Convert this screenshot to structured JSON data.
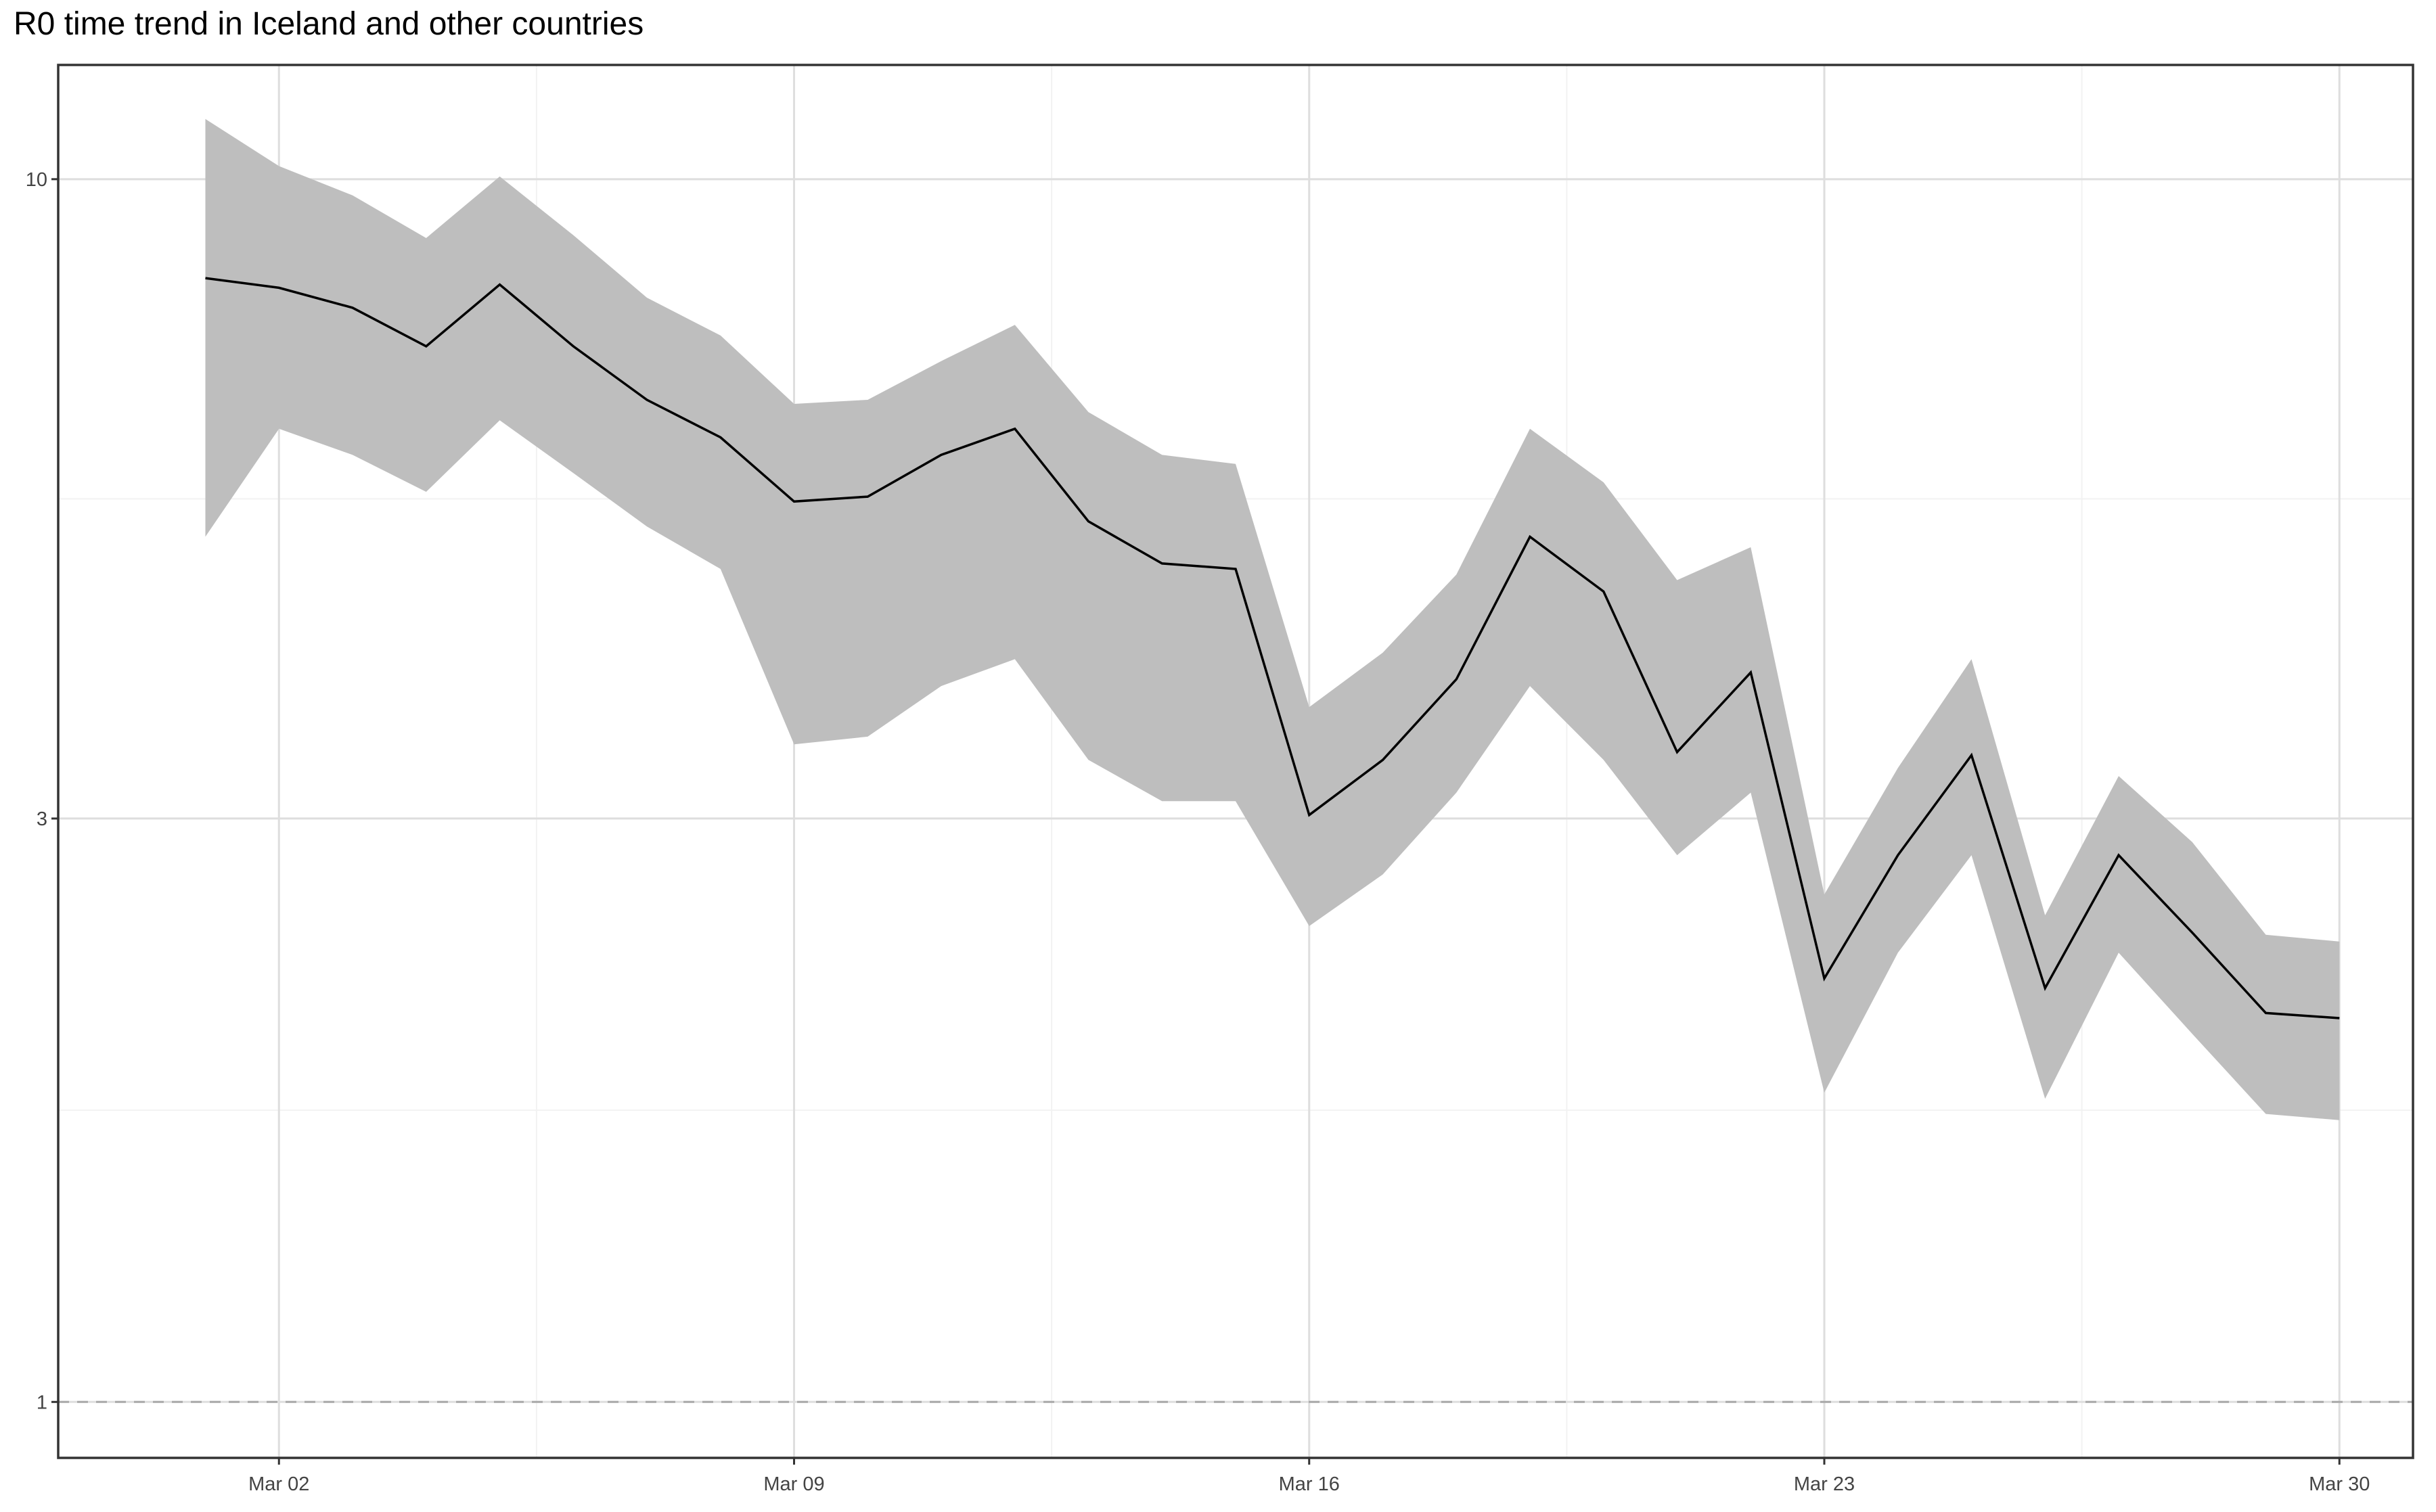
{
  "chart_data": {
    "type": "line",
    "title": "R0 time trend in Iceland and other countries",
    "xlabel": "",
    "ylabel": "",
    "yscale": "log",
    "ylim": [
      0.9,
      12.4
    ],
    "xlim": [
      "2020-02-28",
      "2020-03-31"
    ],
    "x_ticks": [
      "Mar 02",
      "Mar 09",
      "Mar 16",
      "Mar 23",
      "Mar 30"
    ],
    "x_tick_dates": [
      "2020-03-02",
      "2020-03-09",
      "2020-03-16",
      "2020-03-23",
      "2020-03-30"
    ],
    "y_ticks": [
      1,
      3,
      10
    ],
    "y_tick_labels": [
      "1",
      "3",
      "10"
    ],
    "reference_line": {
      "y": 1,
      "style": "dashed"
    },
    "grid": true,
    "legend": "none",
    "series": [
      {
        "x": [
          "2020-03-01",
          "2020-03-02",
          "2020-03-03",
          "2020-03-04",
          "2020-03-05",
          "2020-03-06",
          "2020-03-07",
          "2020-03-08",
          "2020-03-09",
          "2020-03-10",
          "2020-03-11",
          "2020-03-12",
          "2020-03-13",
          "2020-03-14",
          "2020-03-15",
          "2020-03-16",
          "2020-03-17",
          "2020-03-18",
          "2020-03-19",
          "2020-03-20",
          "2020-03-21",
          "2020-03-22",
          "2020-03-23",
          "2020-03-24",
          "2020-03-25",
          "2020-03-26",
          "2020-03-27",
          "2020-03-28",
          "2020-03-29",
          "2020-03-30"
        ],
        "values": [
          8.3,
          8.15,
          7.85,
          7.3,
          8.2,
          7.3,
          6.6,
          6.15,
          5.45,
          5.5,
          5.95,
          6.25,
          5.25,
          4.85,
          4.8,
          3.02,
          3.35,
          3.9,
          5.1,
          4.6,
          3.4,
          3.95,
          2.22,
          2.8,
          3.38,
          2.18,
          2.8,
          2.42,
          2.08,
          2.06
        ],
        "lower": [
          5.1,
          6.25,
          5.95,
          5.55,
          6.35,
          5.75,
          5.2,
          4.8,
          3.45,
          3.5,
          3.85,
          4.05,
          3.35,
          3.1,
          3.1,
          2.45,
          2.7,
          3.15,
          3.85,
          3.35,
          2.8,
          3.15,
          1.79,
          2.33,
          2.8,
          1.77,
          2.33,
          2.0,
          1.72,
          1.7
        ],
        "upper": [
          11.2,
          10.25,
          9.7,
          8.95,
          10.05,
          9.0,
          8.0,
          7.45,
          6.55,
          6.6,
          7.1,
          7.6,
          6.45,
          5.95,
          5.85,
          3.7,
          4.1,
          4.75,
          6.25,
          5.65,
          4.7,
          5.0,
          2.6,
          3.3,
          4.05,
          2.5,
          3.25,
          2.87,
          2.41,
          2.38
        ]
      }
    ],
    "colors": {
      "line": "#000000",
      "ribbon": "#bebebe",
      "reference": "#a9a9a9",
      "grid_major": "#dedede",
      "grid_minor": "#f2f2f2",
      "frame": "#333333"
    }
  }
}
